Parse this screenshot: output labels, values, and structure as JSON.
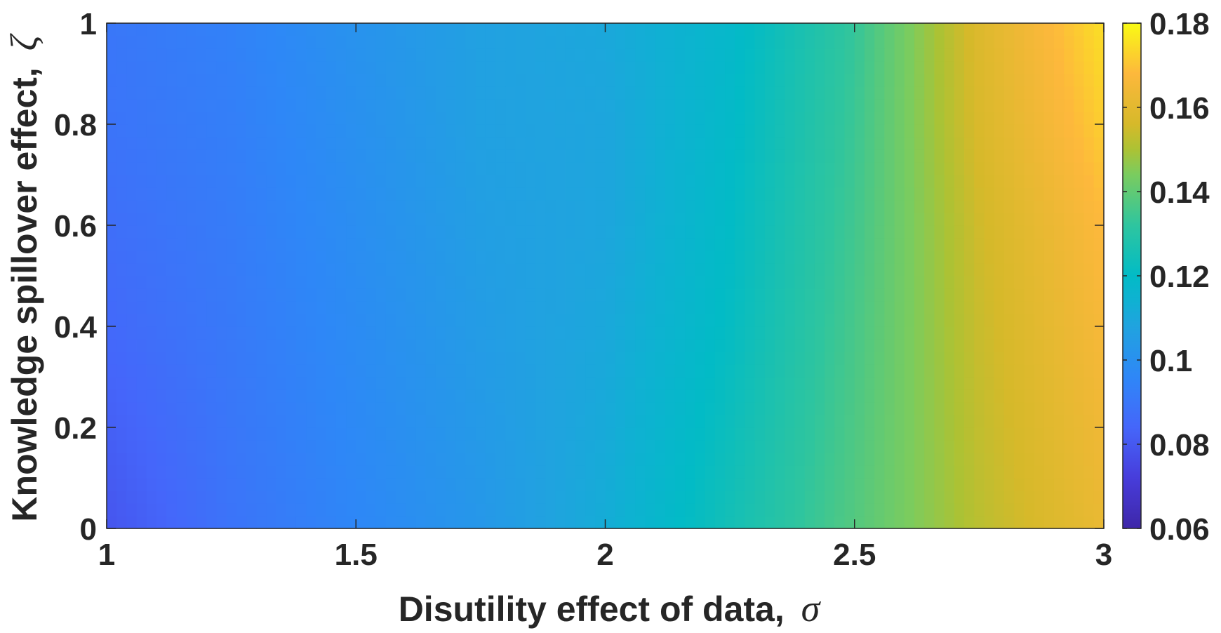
{
  "chart_data": {
    "type": "heatmap",
    "title": "",
    "xlabel": "Disutility effect of data,",
    "xlabel_symbol": "σ",
    "ylabel": "Knowledge spillover effect,",
    "ylabel_symbol": "ζ",
    "xlim": [
      1,
      3
    ],
    "ylim": [
      0,
      1
    ],
    "x_ticks": [
      1,
      1.5,
      2,
      2.5,
      3
    ],
    "x_tick_labels": [
      "1",
      "1.5",
      "2",
      "2.5",
      "3"
    ],
    "y_ticks": [
      0,
      0.2,
      0.4,
      0.6,
      0.8,
      1
    ],
    "y_tick_labels": [
      "0",
      "0.2",
      "0.4",
      "0.6",
      "0.8",
      "1"
    ],
    "colorbar": {
      "range": [
        0.06,
        0.18
      ],
      "ticks": [
        0.06,
        0.08,
        0.1,
        0.12,
        0.14,
        0.16,
        0.18
      ],
      "tick_labels": [
        "0.06",
        "0.08",
        "0.1",
        "0.12",
        "0.14",
        "0.16",
        "0.18"
      ],
      "colormap": "parula",
      "placement": "right"
    },
    "grid": false,
    "x": [
      1.0,
      1.25,
      1.5,
      1.75,
      2.0,
      2.25,
      2.5,
      2.75,
      3.0
    ],
    "y": [
      0.0,
      0.2,
      0.4,
      0.6,
      0.8,
      1.0
    ],
    "z": [
      [
        0.079,
        0.089,
        0.096,
        0.103,
        0.112,
        0.125,
        0.138,
        0.152,
        0.162
      ],
      [
        0.082,
        0.09,
        0.097,
        0.104,
        0.111,
        0.123,
        0.137,
        0.153,
        0.164
      ],
      [
        0.085,
        0.091,
        0.098,
        0.105,
        0.11,
        0.121,
        0.136,
        0.154,
        0.166
      ],
      [
        0.087,
        0.092,
        0.099,
        0.106,
        0.109,
        0.12,
        0.135,
        0.155,
        0.168
      ],
      [
        0.089,
        0.093,
        0.1,
        0.107,
        0.109,
        0.119,
        0.134,
        0.157,
        0.172
      ],
      [
        0.09,
        0.094,
        0.101,
        0.107,
        0.11,
        0.118,
        0.133,
        0.158,
        0.175
      ]
    ]
  }
}
